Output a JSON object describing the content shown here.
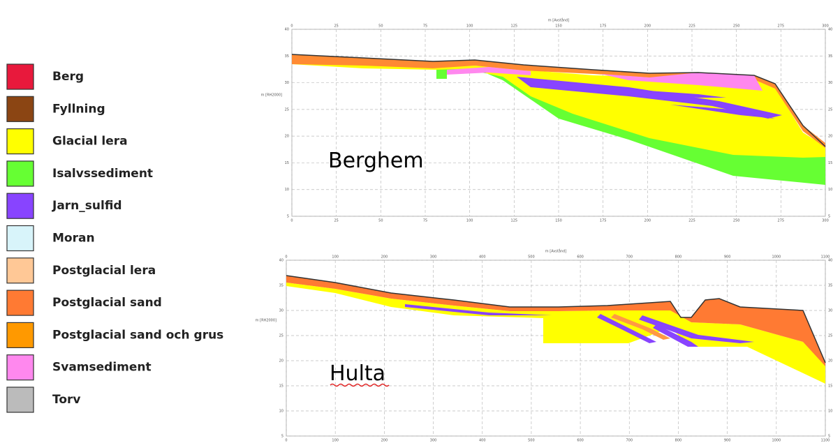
{
  "legend": {
    "items": [
      {
        "label": "Berg",
        "color": "#e8193c"
      },
      {
        "label": "Fyllning",
        "color": "#8b4513"
      },
      {
        "label": "Glacial lera",
        "color": "#ffff00"
      },
      {
        "label": "Isalvssediment",
        "color": "#66ff33"
      },
      {
        "label": "Jarn_sulfid",
        "color": "#8844ff"
      },
      {
        "label": "Moran",
        "color": "#d8f4fa"
      },
      {
        "label": "Postglacial lera",
        "color": "#ffc896"
      },
      {
        "label": "Postglacial sand",
        "color": "#ff7a33"
      },
      {
        "label": "Postglacial sand och grus",
        "color": "#ff9900"
      },
      {
        "label": "Svamsediment",
        "color": "#ff88ee"
      },
      {
        "label": "Torv",
        "color": "#bbbbbb"
      }
    ]
  },
  "sections": [
    {
      "label": "Berghem",
      "x_axis_title": "m [Avstånd]",
      "y_axis_title": "m [RH2000]",
      "xticks": [
        0,
        25,
        50,
        75,
        100,
        125,
        150,
        175,
        200,
        225,
        250,
        275,
        300
      ],
      "yticks": [
        40,
        35,
        30,
        25,
        20,
        15,
        10,
        5
      ]
    },
    {
      "label": "Hulta",
      "x_axis_title": "m [Avstånd]",
      "y_axis_title": "m [RH2000]",
      "xticks": [
        0,
        100,
        200,
        300,
        400,
        500,
        600,
        700,
        800,
        900,
        1000,
        1100
      ],
      "yticks": [
        40,
        35,
        30,
        25,
        20,
        15,
        10,
        5
      ]
    }
  ]
}
